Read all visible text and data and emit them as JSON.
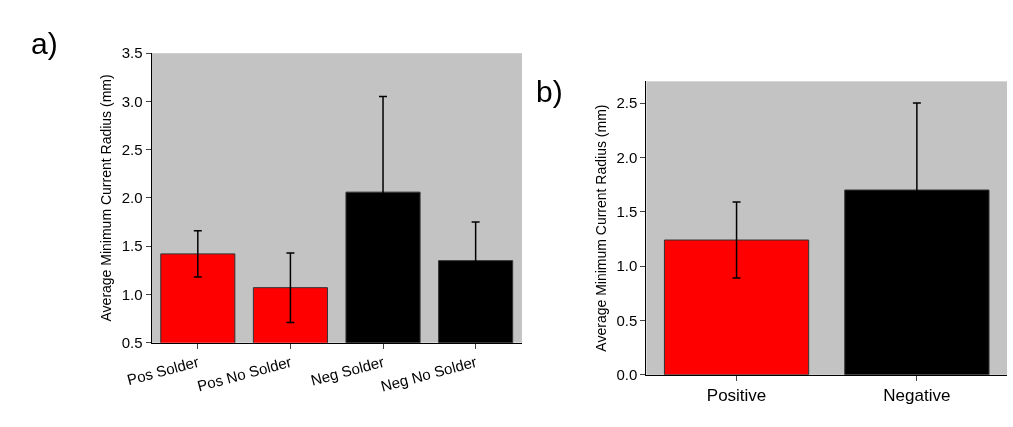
{
  "chart_data": [
    {
      "type": "bar",
      "title": "a)",
      "ylabel": "Average Minimum Current Radius (mm)",
      "categories": [
        "Pos Solder",
        "Pos No Solder",
        "Neg Solder",
        "Neg No Solder"
      ],
      "values": [
        1.42,
        1.07,
        2.06,
        1.35
      ],
      "colors": [
        "#ff0000",
        "#ff0000",
        "#000000",
        "#000000"
      ],
      "errors": [
        0.24,
        0.36,
        0.99,
        0.4
      ],
      "ylim": [
        0.5,
        3.5
      ],
      "yticks": [
        {
          "value": 0.5,
          "label": "0.5"
        },
        {
          "value": 1,
          "label": "1.0"
        },
        {
          "value": 1.5,
          "label": "1.5"
        },
        {
          "value": 2,
          "label": "2.0"
        },
        {
          "value": 2.5,
          "label": "2.5"
        },
        {
          "value": 3,
          "label": "3.0"
        },
        {
          "value": 3.5,
          "label": "3.5"
        }
      ],
      "grid": false
    },
    {
      "type": "bar",
      "title": "b)",
      "ylabel": "Average Minimum Current Radius (mm)",
      "categories": [
        "Positive",
        "Negative"
      ],
      "values": [
        1.24,
        1.7
      ],
      "colors": [
        "#ff0000",
        "#000000"
      ],
      "errors": [
        0.35,
        0.8
      ],
      "ylim": [
        0,
        2.7
      ],
      "yticks": [
        {
          "value": 0,
          "label": "0.0"
        },
        {
          "value": 0.5,
          "label": "0.5"
        },
        {
          "value": 1,
          "label": "1.0"
        },
        {
          "value": 1.5,
          "label": "1.5"
        },
        {
          "value": 2,
          "label": "2.0"
        },
        {
          "value": 2.5,
          "label": "2.5"
        }
      ],
      "grid": false
    }
  ]
}
